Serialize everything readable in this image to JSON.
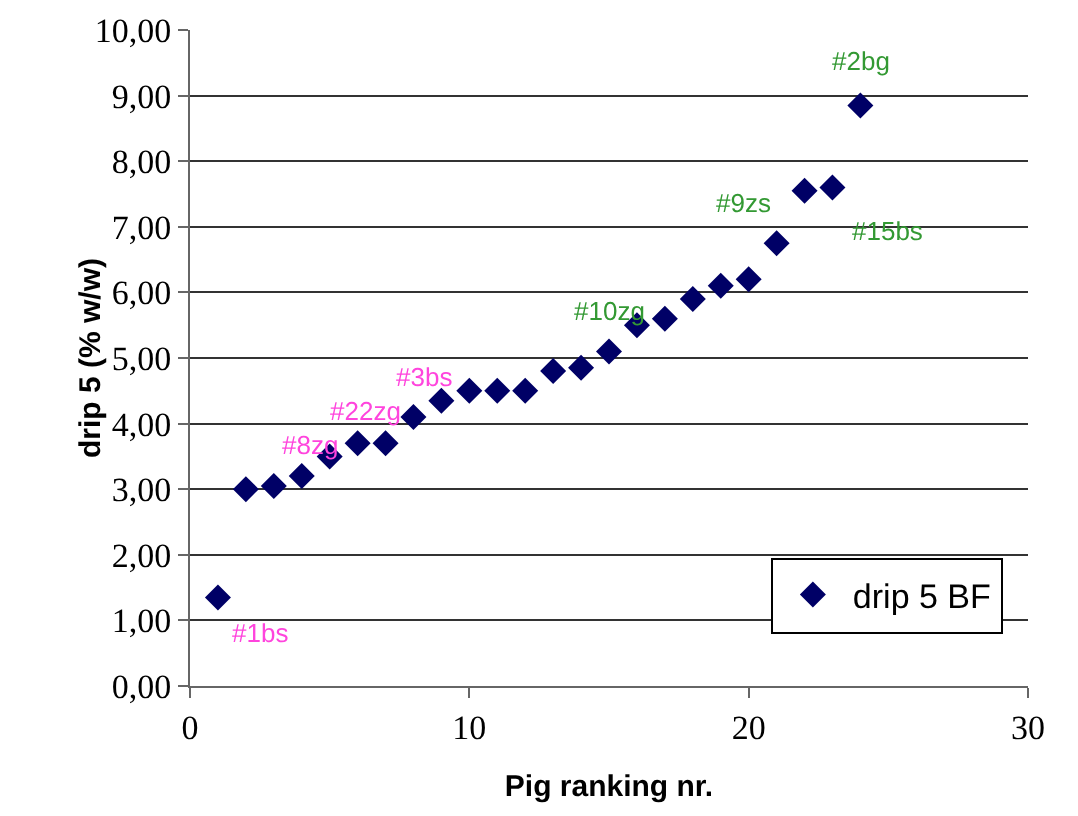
{
  "chart_data": {
    "type": "scatter",
    "xlabel": "Pig ranking nr.",
    "ylabel": "drip 5 (% w/w)",
    "x": [
      1,
      2,
      3,
      4,
      5,
      6,
      7,
      8,
      9,
      10,
      11,
      12,
      13,
      14,
      15,
      16,
      17,
      18,
      19,
      20,
      21,
      22,
      23,
      24
    ],
    "series": [
      {
        "name": "drip 5 BF",
        "color": "#000066",
        "values": [
          1.35,
          3.0,
          3.05,
          3.2,
          3.5,
          3.7,
          3.7,
          4.1,
          4.35,
          4.5,
          4.5,
          4.5,
          4.8,
          4.85,
          5.1,
          5.5,
          5.6,
          5.9,
          6.1,
          6.2,
          6.75,
          7.55,
          7.6,
          8.85
        ]
      }
    ],
    "xlim": [
      0,
      30
    ],
    "xticks": [
      0,
      10,
      20,
      30
    ],
    "ylim": [
      0,
      10
    ],
    "yticks": [
      {
        "value": 0,
        "label": "0,00"
      },
      {
        "value": 1,
        "label": "1,00"
      },
      {
        "value": 2,
        "label": "2,00"
      },
      {
        "value": 3,
        "label": "3,00"
      },
      {
        "value": 4,
        "label": "4,00"
      },
      {
        "value": 5,
        "label": "5,00"
      },
      {
        "value": 6,
        "label": "6,00"
      },
      {
        "value": 7,
        "label": "7,00"
      },
      {
        "value": 8,
        "label": "8,00"
      },
      {
        "value": 9,
        "label": "9,00"
      },
      {
        "value": 10,
        "label": "10,00"
      }
    ],
    "grid": "y",
    "legend": "bottom right",
    "marker": "diamond",
    "annotations": [
      {
        "text": "#1bs",
        "x": 1,
        "y": 1.35
      },
      {
        "text": "#8zg",
        "x": 4,
        "y": 3.2
      },
      {
        "text": "#22zg",
        "x": 6,
        "y": 3.7
      },
      {
        "text": "#3bs",
        "x": 8,
        "y": 4.1
      },
      {
        "text": "#10zg",
        "x": 15,
        "y": 5.1
      },
      {
        "text": "#9zs",
        "x": 21,
        "y": 6.75
      },
      {
        "text": "#15bs",
        "x": 23,
        "y": 7.6
      },
      {
        "text": "#2bg",
        "x": 24,
        "y": 8.85
      }
    ]
  }
}
